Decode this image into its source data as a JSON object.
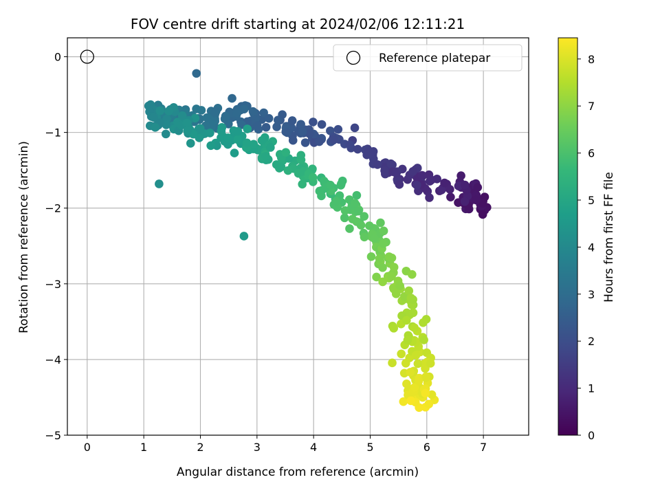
{
  "chart_data": {
    "type": "scatter",
    "title": "FOV centre drift starting at 2024/02/06 12:11:21",
    "xlabel": "Angular distance from reference (arcmin)",
    "ylabel": "Rotation from reference (arcmin)",
    "xlim": [
      -0.35,
      7.8
    ],
    "ylim": [
      -5.0,
      0.25
    ],
    "xticks": [
      0,
      1,
      2,
      3,
      4,
      5,
      6,
      7
    ],
    "yticks": [
      0,
      -1,
      -2,
      -3,
      -4,
      -5
    ],
    "grid": true,
    "legend": {
      "position": "top-right",
      "entries": [
        {
          "label": "Reference platepar",
          "marker": "open-circle"
        }
      ]
    },
    "reference_point": {
      "x": 0,
      "y": 0
    },
    "colorbar": {
      "label": "Hours from first FF file",
      "min": 0,
      "max": 8.45,
      "ticks": [
        0,
        1,
        2,
        3,
        4,
        5,
        6,
        7,
        8
      ],
      "colormap": "viridis"
    },
    "cluster_centers": [
      {
        "x": 7.0,
        "y": -2.0,
        "t": 0.3
      },
      {
        "x": 6.6,
        "y": -1.75,
        "t": 0.7
      },
      {
        "x": 5.7,
        "y": -1.6,
        "t": 1.2
      },
      {
        "x": 4.6,
        "y": -1.15,
        "t": 1.8
      },
      {
        "x": 3.7,
        "y": -0.95,
        "t": 2.3
      },
      {
        "x": 2.6,
        "y": -0.75,
        "t": 2.8
      },
      {
        "x": 1.9,
        "y": -0.85,
        "t": 3.3
      },
      {
        "x": 1.1,
        "y": -0.75,
        "t": 3.8
      },
      {
        "x": 1.8,
        "y": -0.95,
        "t": 4.3
      },
      {
        "x": 2.9,
        "y": -1.15,
        "t": 4.8
      },
      {
        "x": 3.6,
        "y": -1.4,
        "t": 5.3
      },
      {
        "x": 4.3,
        "y": -1.75,
        "t": 5.8
      },
      {
        "x": 4.9,
        "y": -2.2,
        "t": 6.3
      },
      {
        "x": 5.4,
        "y": -2.8,
        "t": 6.9
      },
      {
        "x": 5.75,
        "y": -3.5,
        "t": 7.4
      },
      {
        "x": 5.85,
        "y": -4.2,
        "t": 8.0
      },
      {
        "x": 5.85,
        "y": -4.6,
        "t": 8.4
      }
    ],
    "outliers": [
      {
        "x": 1.27,
        "y": -1.68,
        "t": 4.2
      },
      {
        "x": 2.77,
        "y": -2.37,
        "t": 4.6
      },
      {
        "x": 1.93,
        "y": -0.22,
        "t": 2.9
      }
    ]
  }
}
